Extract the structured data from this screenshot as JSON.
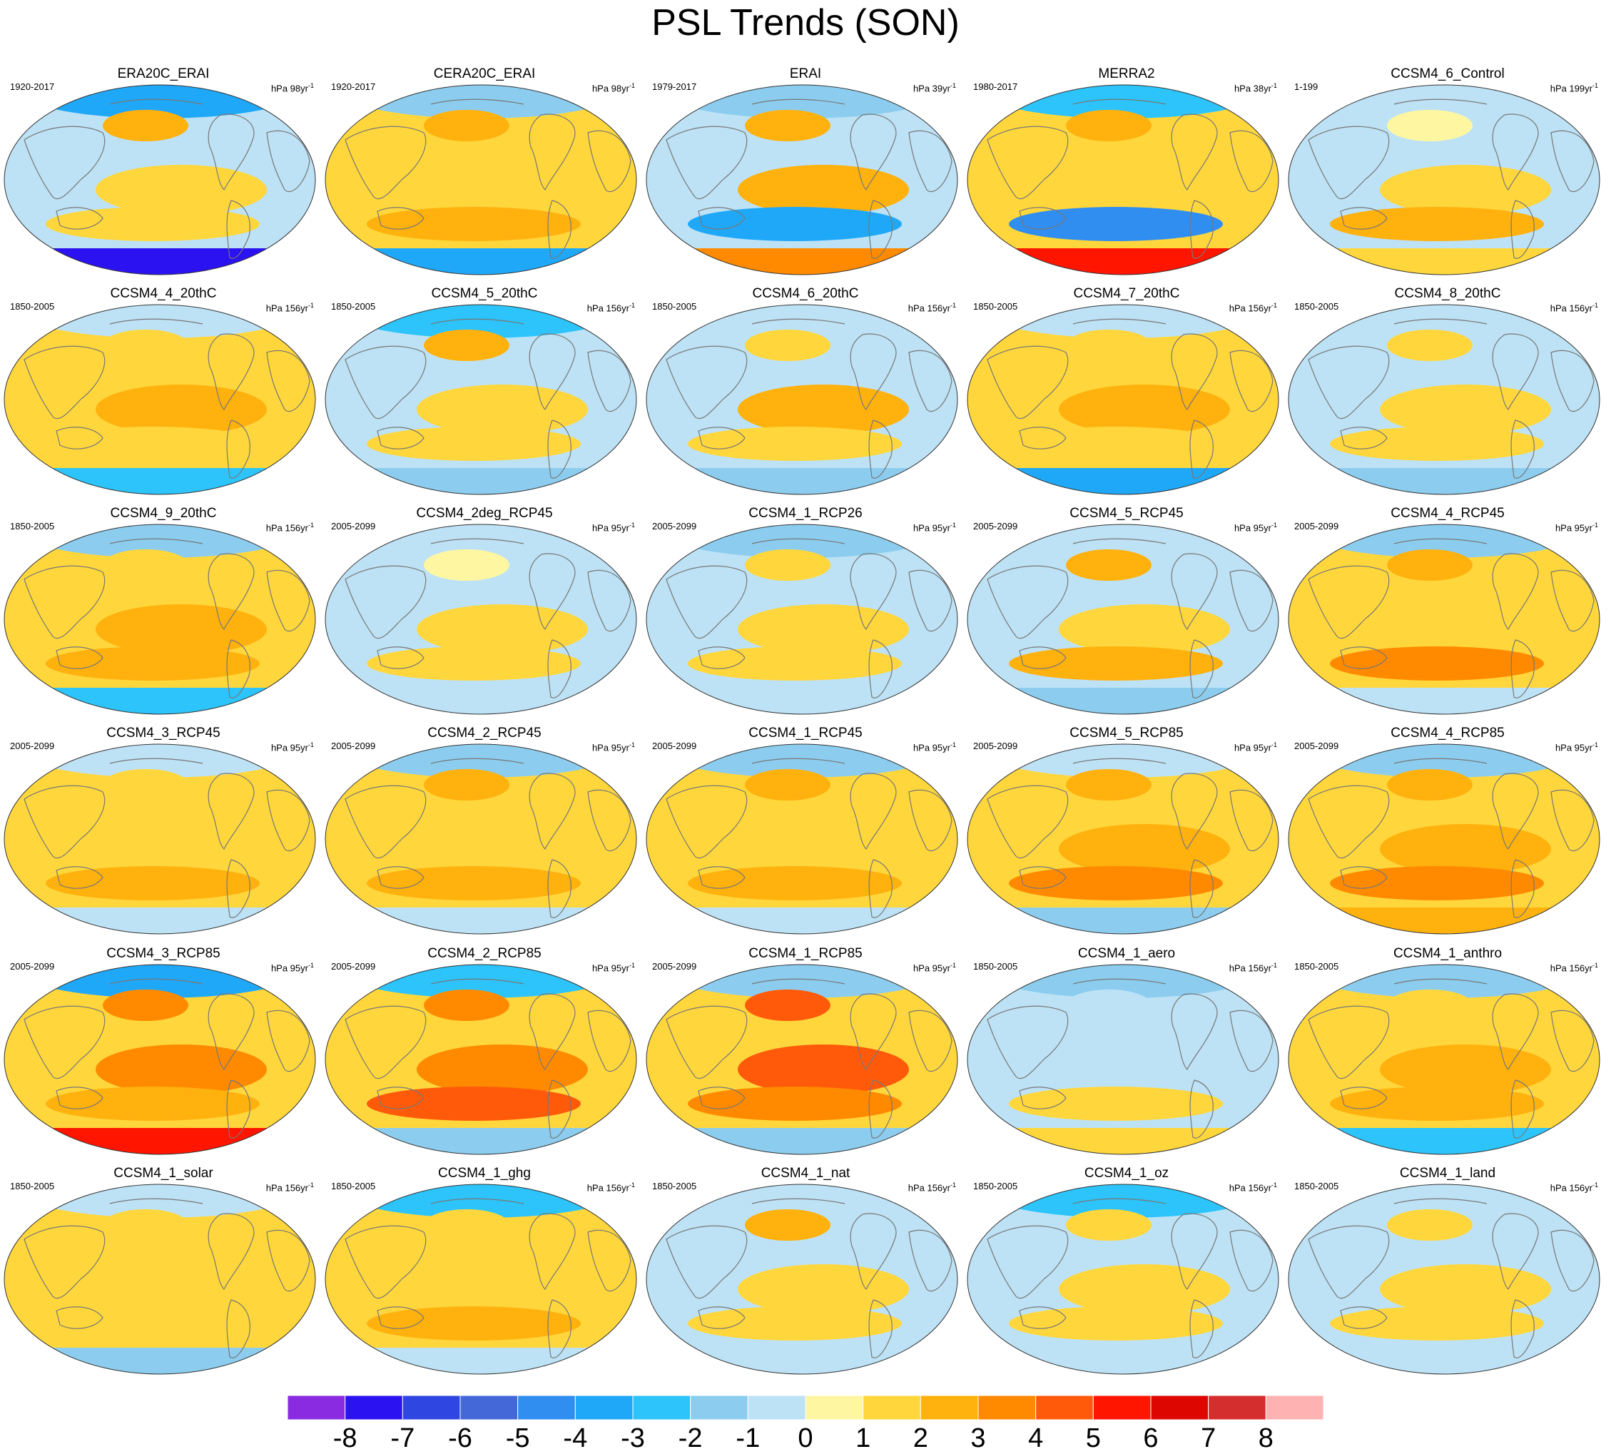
{
  "title": "PSL Trends (SON)",
  "panels": [
    {
      "name": "ERA20C_ERAI",
      "years": "1920-2017",
      "units": "hPa 98yr",
      "anomaly": [
        -4,
        2,
        -1,
        1,
        1,
        -8
      ]
    },
    {
      "name": "CERA20C_ERAI",
      "years": "1920-2017",
      "units": "hPa 98yr",
      "anomaly": [
        -2,
        2,
        1,
        1,
        2,
        -4
      ]
    },
    {
      "name": "ERAI",
      "years": "1979-2017",
      "units": "hPa 39yr",
      "anomaly": [
        -2,
        2,
        -1,
        2,
        -4,
        3
      ]
    },
    {
      "name": "MERRA2",
      "years": "1980-2017",
      "units": "hPa 38yr",
      "anomaly": [
        -3,
        2,
        1,
        1,
        -5,
        5
      ]
    },
    {
      "name": "CCSM4_6_Control",
      "years": "1-199",
      "units": "hPa 199yr",
      "anomaly": [
        -1,
        0,
        -1,
        1,
        2,
        1
      ]
    },
    {
      "name": "CCSM4_4_20thC",
      "years": "1850-2005",
      "units": "hPa 156yr",
      "anomaly": [
        -1,
        1,
        1,
        2,
        1,
        -3
      ]
    },
    {
      "name": "CCSM4_5_20thC",
      "years": "1850-2005",
      "units": "hPa 156yr",
      "anomaly": [
        -3,
        2,
        -1,
        1,
        1,
        -2
      ]
    },
    {
      "name": "CCSM4_6_20thC",
      "years": "1850-2005",
      "units": "hPa 156yr",
      "anomaly": [
        -1,
        1,
        -1,
        2,
        1,
        -2
      ]
    },
    {
      "name": "CCSM4_7_20thC",
      "years": "1850-2005",
      "units": "hPa 156yr",
      "anomaly": [
        -1,
        1,
        1,
        2,
        1,
        -4
      ]
    },
    {
      "name": "CCSM4_8_20thC",
      "years": "1850-2005",
      "units": "hPa 156yr",
      "anomaly": [
        -1,
        1,
        -1,
        1,
        1,
        -2
      ]
    },
    {
      "name": "CCSM4_9_20thC",
      "years": "1850-2005",
      "units": "hPa 156yr",
      "anomaly": [
        -2,
        1,
        1,
        2,
        2,
        -3
      ]
    },
    {
      "name": "CCSM4_2deg_RCP45",
      "years": "2005-2099",
      "units": "hPa 95yr",
      "anomaly": [
        -1,
        0,
        -1,
        1,
        1,
        -1
      ]
    },
    {
      "name": "CCSM4_1_RCP26",
      "years": "2005-2099",
      "units": "hPa 95yr",
      "anomaly": [
        -2,
        1,
        -1,
        1,
        1,
        -1
      ]
    },
    {
      "name": "CCSM4_5_RCP45",
      "years": "2005-2099",
      "units": "hPa 95yr",
      "anomaly": [
        -1,
        2,
        -1,
        1,
        2,
        -2
      ]
    },
    {
      "name": "CCSM4_4_RCP45",
      "years": "2005-2099",
      "units": "hPa 95yr",
      "anomaly": [
        -2,
        2,
        1,
        1,
        3,
        -1
      ]
    },
    {
      "name": "CCSM4_3_RCP45",
      "years": "2005-2099",
      "units": "hPa 95yr",
      "anomaly": [
        -1,
        1,
        1,
        1,
        2,
        -1
      ]
    },
    {
      "name": "CCSM4_2_RCP45",
      "years": "2005-2099",
      "units": "hPa 95yr",
      "anomaly": [
        -2,
        2,
        1,
        1,
        2,
        -1
      ]
    },
    {
      "name": "CCSM4_1_RCP45",
      "years": "2005-2099",
      "units": "hPa 95yr",
      "anomaly": [
        -2,
        2,
        1,
        1,
        2,
        -1
      ]
    },
    {
      "name": "CCSM4_5_RCP85",
      "years": "2005-2099",
      "units": "hPa 95yr",
      "anomaly": [
        -1,
        2,
        1,
        2,
        3,
        -2
      ]
    },
    {
      "name": "CCSM4_4_RCP85",
      "years": "2005-2099",
      "units": "hPa 95yr",
      "anomaly": [
        -2,
        2,
        1,
        2,
        3,
        2
      ]
    },
    {
      "name": "CCSM4_3_RCP85",
      "years": "2005-2099",
      "units": "hPa 95yr",
      "anomaly": [
        -4,
        3,
        1,
        3,
        2,
        5
      ]
    },
    {
      "name": "CCSM4_2_RCP85",
      "years": "2005-2099",
      "units": "hPa 95yr",
      "anomaly": [
        -3,
        3,
        1,
        3,
        4,
        -2
      ]
    },
    {
      "name": "CCSM4_1_RCP85",
      "years": "2005-2099",
      "units": "hPa 95yr",
      "anomaly": [
        -2,
        4,
        1,
        4,
        3,
        -2
      ]
    },
    {
      "name": "CCSM4_1_aero",
      "years": "1850-2005",
      "units": "hPa 156yr",
      "anomaly": [
        -2,
        -1,
        -1,
        -1,
        1,
        1
      ]
    },
    {
      "name": "CCSM4_1_anthro",
      "years": "1850-2005",
      "units": "hPa 156yr",
      "anomaly": [
        -2,
        1,
        1,
        2,
        2,
        -3
      ]
    },
    {
      "name": "CCSM4_1_solar",
      "years": "1850-2005",
      "units": "hPa 156yr",
      "anomaly": [
        -1,
        1,
        1,
        1,
        1,
        -2
      ]
    },
    {
      "name": "CCSM4_1_ghg",
      "years": "1850-2005",
      "units": "hPa 156yr",
      "anomaly": [
        -3,
        1,
        1,
        1,
        2,
        -1
      ]
    },
    {
      "name": "CCSM4_1_nat",
      "years": "1850-2005",
      "units": "hPa 156yr",
      "anomaly": [
        -1,
        2,
        -1,
        1,
        1,
        -1
      ]
    },
    {
      "name": "CCSM4_1_oz",
      "years": "1850-2005",
      "units": "hPa 156yr",
      "anomaly": [
        -3,
        1,
        -1,
        1,
        1,
        -1
      ]
    },
    {
      "name": "CCSM4_1_land",
      "years": "1850-2005",
      "units": "hPa 156yr",
      "anomaly": [
        -1,
        1,
        -1,
        1,
        1,
        -1
      ]
    }
  ],
  "colorbar": {
    "labels": [
      "-8",
      "-7",
      "-6",
      "-5",
      "-4",
      "-3",
      "-2",
      "-1",
      "0",
      "1",
      "2",
      "3",
      "4",
      "5",
      "6",
      "7",
      "8"
    ],
    "colors": [
      "#8a2be2",
      "#2b12f0",
      "#2f46e0",
      "#4468d8",
      "#2f8ef0",
      "#20a8f8",
      "#2cc4fa",
      "#8ccdef",
      "#bde2f5",
      "#fff6a2",
      "#ffd73c",
      "#ffb10e",
      "#ff8a00",
      "#ff5a0a",
      "#ff1500",
      "#dd0600",
      "#d52e2e",
      "#ffb2b2"
    ]
  }
}
